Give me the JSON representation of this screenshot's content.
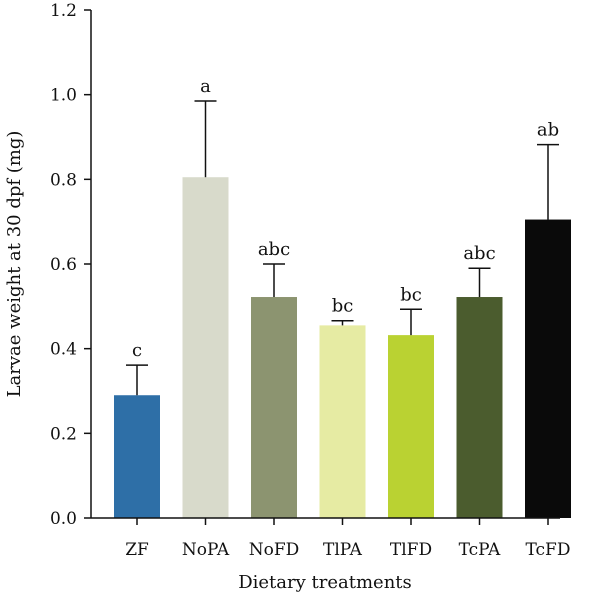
{
  "chart_data": {
    "type": "bar",
    "xlabel": "Dietary treatments",
    "ylabel": "Larvae weight at 30 dpf (mg)",
    "ylim": [
      0,
      1.2
    ],
    "yticks": [
      "0.0",
      "0.2",
      "0.4",
      "0.6",
      "0.8",
      "1.0",
      "1.2"
    ],
    "grid": false,
    "categories": [
      "ZF",
      "NoPA",
      "NoFD",
      "TlPA",
      "TlFD",
      "TcPA",
      "TcFD"
    ],
    "values": [
      0.29,
      0.805,
      0.522,
      0.455,
      0.432,
      0.522,
      0.705
    ],
    "errors": [
      0.071,
      0.18,
      0.078,
      0.011,
      0.061,
      0.068,
      0.177
    ],
    "significance": [
      "c",
      "a",
      "abc",
      "bc",
      "bc",
      "abc",
      "ab"
    ],
    "colors": [
      "#2e6fa7",
      "#d8dacb",
      "#8c9470",
      "#e6eba3",
      "#bad232",
      "#4b5c2e",
      "#0a0a0a"
    ]
  }
}
